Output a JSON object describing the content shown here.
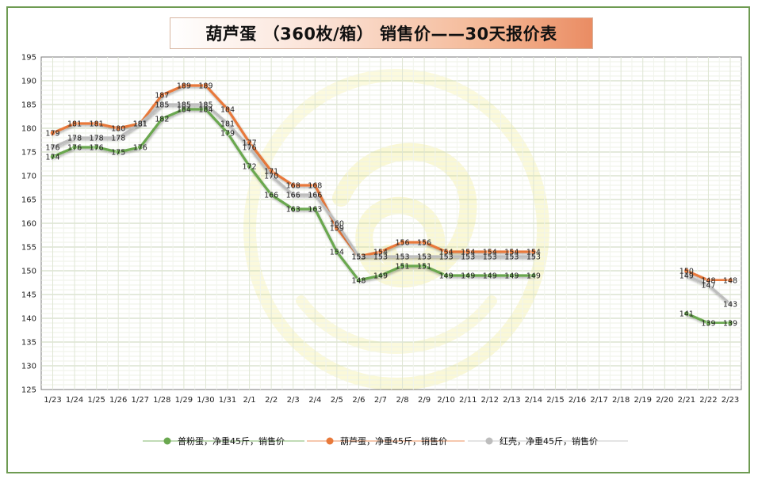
{
  "chart_data": {
    "type": "line",
    "title": "葫芦蛋 （360枚/箱） 销售价——30天报价表",
    "xlabel": "",
    "ylabel": "",
    "ylim": [
      125,
      195
    ],
    "yticks": [
      125,
      130,
      135,
      140,
      145,
      150,
      155,
      160,
      165,
      170,
      175,
      180,
      185,
      190,
      195
    ],
    "grid": true,
    "legend_position": "bottom",
    "categories": [
      "1/23",
      "1/24",
      "1/25",
      "1/26",
      "1/27",
      "1/28",
      "1/29",
      "1/30",
      "1/31",
      "2/1",
      "2/2",
      "2/3",
      "2/4",
      "2/5",
      "2/6",
      "2/7",
      "2/8",
      "2/9",
      "2/10",
      "2/11",
      "2/12",
      "2/13",
      "2/14",
      "2/15",
      "2/16",
      "2/17",
      "2/18",
      "2/19",
      "2/20",
      "2/21",
      "2/22",
      "2/23"
    ],
    "series": [
      {
        "name": "普粉蛋，净重45斤，销售价",
        "color": "#6aa84f",
        "values": [
          174,
          176,
          176,
          175,
          176,
          182,
          184,
          184,
          179,
          172,
          166,
          163,
          163,
          154,
          148,
          149,
          151,
          151,
          149,
          149,
          149,
          149,
          149,
          null,
          null,
          null,
          null,
          null,
          null,
          141,
          139,
          139
        ]
      },
      {
        "name": "葫芦蛋，净重45斤，销售价",
        "color": "#e8793a",
        "values": [
          179,
          181,
          181,
          180,
          181,
          187,
          189,
          189,
          184,
          177,
          171,
          168,
          168,
          159,
          153,
          154,
          156,
          156,
          154,
          154,
          154,
          154,
          154,
          null,
          null,
          null,
          null,
          null,
          null,
          150,
          148,
          148
        ]
      },
      {
        "name": "红壳，净重45斤，销售价",
        "color": "#bdbdbd",
        "values": [
          176,
          178,
          178,
          178,
          181,
          185,
          185,
          185,
          181,
          176,
          170,
          166,
          166,
          160,
          153,
          153,
          153,
          153,
          153,
          153,
          153,
          153,
          153,
          null,
          null,
          null,
          null,
          null,
          null,
          149,
          147,
          143
        ]
      }
    ]
  }
}
